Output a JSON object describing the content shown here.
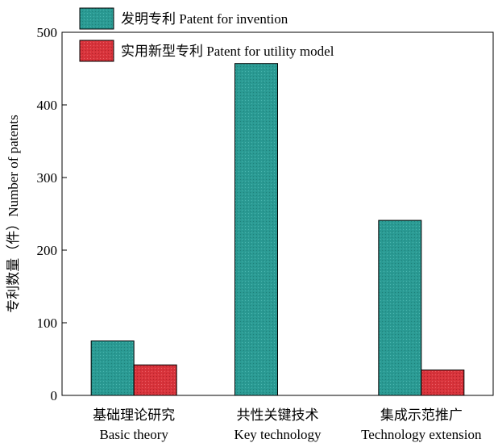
{
  "chart_data": {
    "type": "bar",
    "categories": [
      {
        "zh": "基础理论研究",
        "en": "Basic theory"
      },
      {
        "zh": "共性关键技术",
        "en": "Key technology"
      },
      {
        "zh": "集成示范推广",
        "en": "Technology extension"
      }
    ],
    "series": [
      {
        "name": "发明专利 Patent for invention",
        "color": "#2a9a93",
        "values": [
          75,
          457,
          241
        ]
      },
      {
        "name": "实用新型专利 Patent for utility model",
        "color": "#d8333b",
        "values": [
          42,
          0,
          35
        ]
      }
    ],
    "ylabel": "专利数量（件）Number of patents",
    "ylim": [
      0,
      500
    ],
    "yticks": [
      "0",
      "100",
      "200",
      "300",
      "400",
      "500"
    ],
    "legend_position": "top-left",
    "grid": false
  }
}
